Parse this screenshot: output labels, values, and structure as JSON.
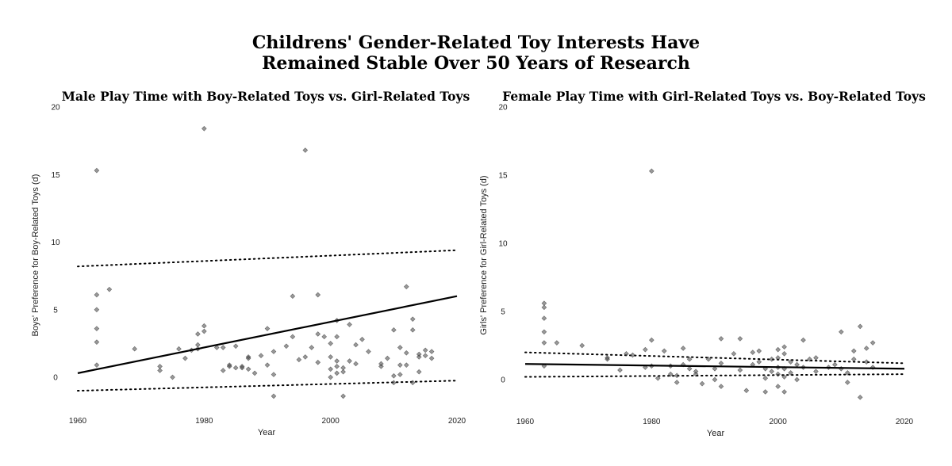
{
  "figure": {
    "title_line1": "Childrens' Gender-Related Toy Interests Have",
    "title_line2": "Remained Stable Over 50 Years of Research"
  },
  "chart_data": [
    {
      "type": "scatter",
      "title": "Male Play Time with Boy-Related Toys vs. Girl-Related Toys",
      "xlabel": "Year",
      "ylabel": "Boys' Preference for Boy-Related Toys (d)",
      "xlim": [
        1960,
        2020
      ],
      "ylim": [
        -2.5,
        20
      ],
      "xticks": [
        1960,
        1980,
        2000,
        2020
      ],
      "yticks": [
        0,
        5,
        10,
        15,
        20
      ],
      "grid": false,
      "fit_line": {
        "x": [
          1960,
          2020
        ],
        "y": [
          0.3,
          6.0
        ]
      },
      "ci_upper": {
        "x": [
          1960,
          2020
        ],
        "y": [
          8.2,
          9.4
        ]
      },
      "ci_lower": {
        "x": [
          1960,
          2020
        ],
        "y": [
          -1.0,
          -0.25
        ]
      },
      "points": [
        [
          1963,
          15.3
        ],
        [
          1963,
          6.1
        ],
        [
          1963,
          5.0
        ],
        [
          1963,
          3.6
        ],
        [
          1963,
          2.6
        ],
        [
          1963,
          0.9
        ],
        [
          1965,
          6.5
        ],
        [
          1969,
          2.1
        ],
        [
          1973,
          0.8
        ],
        [
          1973,
          0.5
        ],
        [
          1975,
          0.0
        ],
        [
          1976,
          2.1
        ],
        [
          1977,
          1.4
        ],
        [
          1978,
          2.0
        ],
        [
          1979,
          3.2
        ],
        [
          1979,
          2.4
        ],
        [
          1979,
          2.1
        ],
        [
          1980,
          18.4
        ],
        [
          1980,
          3.8
        ],
        [
          1980,
          3.4
        ],
        [
          1982,
          2.2
        ],
        [
          1983,
          2.2
        ],
        [
          1983,
          0.5
        ],
        [
          1984,
          0.9
        ],
        [
          1984,
          0.8
        ],
        [
          1985,
          2.3
        ],
        [
          1985,
          0.7
        ],
        [
          1986,
          0.8
        ],
        [
          1986,
          0.7
        ],
        [
          1987,
          1.5
        ],
        [
          1987,
          1.4
        ],
        [
          1987,
          0.6
        ],
        [
          1988,
          0.3
        ],
        [
          1989,
          1.6
        ],
        [
          1990,
          3.6
        ],
        [
          1990,
          0.9
        ],
        [
          1991,
          1.9
        ],
        [
          1991,
          0.2
        ],
        [
          1991,
          -1.4
        ],
        [
          1993,
          2.3
        ],
        [
          1994,
          6.0
        ],
        [
          1994,
          3.0
        ],
        [
          1995,
          1.3
        ],
        [
          1996,
          16.8
        ],
        [
          1996,
          1.5
        ],
        [
          1997,
          2.2
        ],
        [
          1998,
          6.1
        ],
        [
          1998,
          3.2
        ],
        [
          1998,
          1.1
        ],
        [
          1999,
          3.0
        ],
        [
          2000,
          2.5
        ],
        [
          2000,
          1.5
        ],
        [
          2000,
          0.6
        ],
        [
          2000,
          0.0
        ],
        [
          2001,
          4.2
        ],
        [
          2001,
          3.0
        ],
        [
          2001,
          1.2
        ],
        [
          2001,
          0.8
        ],
        [
          2001,
          0.3
        ],
        [
          2002,
          0.7
        ],
        [
          2002,
          0.4
        ],
        [
          2002,
          -1.4
        ],
        [
          2003,
          3.9
        ],
        [
          2003,
          1.2
        ],
        [
          2004,
          2.4
        ],
        [
          2004,
          1.0
        ],
        [
          2005,
          2.8
        ],
        [
          2006,
          1.9
        ],
        [
          2008,
          0.8
        ],
        [
          2008,
          1.0
        ],
        [
          2009,
          1.4
        ],
        [
          2010,
          3.5
        ],
        [
          2010,
          0.1
        ],
        [
          2010,
          -0.4
        ],
        [
          2011,
          2.2
        ],
        [
          2011,
          0.9
        ],
        [
          2011,
          0.2
        ],
        [
          2012,
          1.8
        ],
        [
          2012,
          6.7
        ],
        [
          2012,
          0.9
        ],
        [
          2013,
          4.3
        ],
        [
          2013,
          3.5
        ],
        [
          2013,
          -0.4
        ],
        [
          2014,
          1.7
        ],
        [
          2014,
          1.5
        ],
        [
          2014,
          0.4
        ],
        [
          2015,
          1.6
        ],
        [
          2015,
          2.0
        ],
        [
          2016,
          1.9
        ],
        [
          2016,
          1.4
        ]
      ]
    },
    {
      "type": "scatter",
      "title": "Female Play Time with Girl-Related Toys vs. Boy-Related Toys",
      "xlabel": "Year",
      "ylabel": "Girls' Preference for Girl-Related Toys (d)",
      "xlim": [
        1960,
        2020
      ],
      "ylim": [
        -2.5,
        20
      ],
      "xticks": [
        1960,
        1980,
        2000,
        2020
      ],
      "yticks": [
        0,
        5,
        10,
        15,
        20
      ],
      "grid": false,
      "fit_line": {
        "x": [
          1960,
          2020
        ],
        "y": [
          1.15,
          0.8
        ]
      },
      "ci_upper": {
        "x": [
          1960,
          2020
        ],
        "y": [
          2.0,
          1.2
        ]
      },
      "ci_lower": {
        "x": [
          1960,
          2020
        ],
        "y": [
          0.2,
          0.4
        ]
      },
      "points": [
        [
          1963,
          5.6
        ],
        [
          1963,
          5.3
        ],
        [
          1963,
          4.5
        ],
        [
          1963,
          3.5
        ],
        [
          1963,
          2.7
        ],
        [
          1963,
          1.0
        ],
        [
          1965,
          2.7
        ],
        [
          1969,
          2.5
        ],
        [
          1973,
          1.6
        ],
        [
          1973,
          1.5
        ],
        [
          1975,
          0.7
        ],
        [
          1976,
          1.9
        ],
        [
          1977,
          1.8
        ],
        [
          1979,
          2.2
        ],
        [
          1979,
          0.9
        ],
        [
          1980,
          15.3
        ],
        [
          1980,
          2.9
        ],
        [
          1980,
          1.0
        ],
        [
          1981,
          0.1
        ],
        [
          1982,
          2.1
        ],
        [
          1983,
          0.4
        ],
        [
          1983,
          1.0
        ],
        [
          1984,
          0.3
        ],
        [
          1984,
          -0.2
        ],
        [
          1985,
          2.3
        ],
        [
          1985,
          1.1
        ],
        [
          1986,
          1.5
        ],
        [
          1986,
          0.8
        ],
        [
          1987,
          0.6
        ],
        [
          1987,
          0.4
        ],
        [
          1988,
          -0.3
        ],
        [
          1989,
          1.5
        ],
        [
          1990,
          0.8
        ],
        [
          1990,
          0.0
        ],
        [
          1991,
          3.0
        ],
        [
          1991,
          1.2
        ],
        [
          1991,
          -0.5
        ],
        [
          1993,
          1.9
        ],
        [
          1994,
          3.0
        ],
        [
          1994,
          0.7
        ],
        [
          1995,
          -0.8
        ],
        [
          1996,
          2.0
        ],
        [
          1996,
          1.1
        ],
        [
          1997,
          2.1
        ],
        [
          1997,
          1.3
        ],
        [
          1998,
          0.8
        ],
        [
          1998,
          0.1
        ],
        [
          1998,
          -0.9
        ],
        [
          1999,
          1.5
        ],
        [
          1999,
          0.6
        ],
        [
          2000,
          2.2
        ],
        [
          2000,
          1.6
        ],
        [
          2000,
          0.9
        ],
        [
          2000,
          0.4
        ],
        [
          2000,
          -0.5
        ],
        [
          2001,
          2.4
        ],
        [
          2001,
          1.9
        ],
        [
          2001,
          0.8
        ],
        [
          2001,
          0.2
        ],
        [
          2001,
          -0.9
        ],
        [
          2002,
          1.3
        ],
        [
          2002,
          0.5
        ],
        [
          2003,
          1.1
        ],
        [
          2003,
          0.0
        ],
        [
          2004,
          2.9
        ],
        [
          2004,
          0.9
        ],
        [
          2005,
          1.5
        ],
        [
          2006,
          1.6
        ],
        [
          2006,
          0.6
        ],
        [
          2008,
          0.9
        ],
        [
          2009,
          1.1
        ],
        [
          2010,
          3.5
        ],
        [
          2010,
          0.8
        ],
        [
          2011,
          0.5
        ],
        [
          2011,
          -0.2
        ],
        [
          2012,
          2.1
        ],
        [
          2012,
          1.5
        ],
        [
          2013,
          3.9
        ],
        [
          2013,
          -1.3
        ],
        [
          2014,
          2.3
        ],
        [
          2014,
          1.3
        ],
        [
          2015,
          2.7
        ],
        [
          2015,
          0.9
        ]
      ]
    }
  ]
}
